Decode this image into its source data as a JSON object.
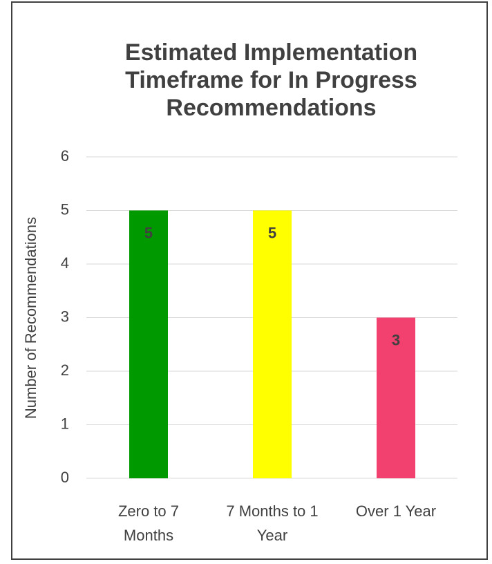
{
  "chart_data": {
    "type": "bar",
    "title": "Estimated Implementation Timeframe for In Progress Recommendations",
    "y_label": "Number of Recommendations",
    "categories": [
      "Zero to 7 Months",
      "7 Months to 1 Year",
      "Over 1 Year"
    ],
    "values": [
      5,
      5,
      3
    ],
    "colors": [
      "#009900",
      "#ffff00",
      "#f2406f"
    ],
    "ylim": [
      0,
      6
    ],
    "yticks": [
      0,
      1,
      2,
      3,
      4,
      5,
      6
    ],
    "grid": true,
    "data_labels": true
  }
}
